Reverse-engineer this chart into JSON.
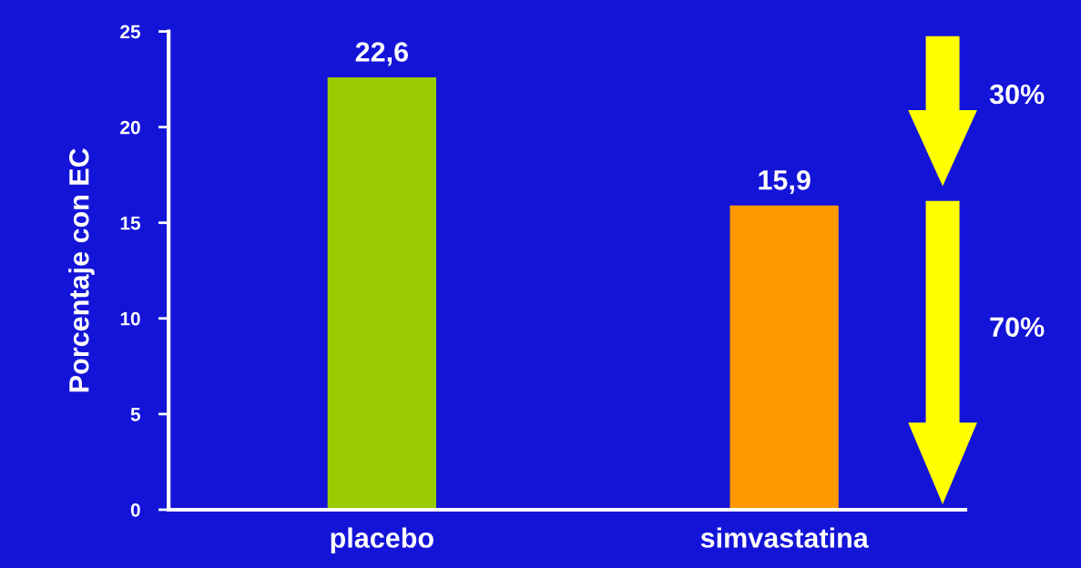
{
  "chart_data": {
    "type": "bar",
    "ylabel": "Porcentaje con EC",
    "categories": [
      "placebo",
      "simvastatina"
    ],
    "values": [
      22.6,
      15.9
    ],
    "colors": [
      "#99cc00",
      "#ff9900"
    ],
    "value_labels": [
      "22,6",
      "15,9"
    ],
    "ylim": [
      0,
      25
    ],
    "yticks": [
      0,
      5,
      10,
      15,
      20,
      25
    ],
    "grid": false,
    "annotations": [
      "30%",
      "70%"
    ]
  }
}
